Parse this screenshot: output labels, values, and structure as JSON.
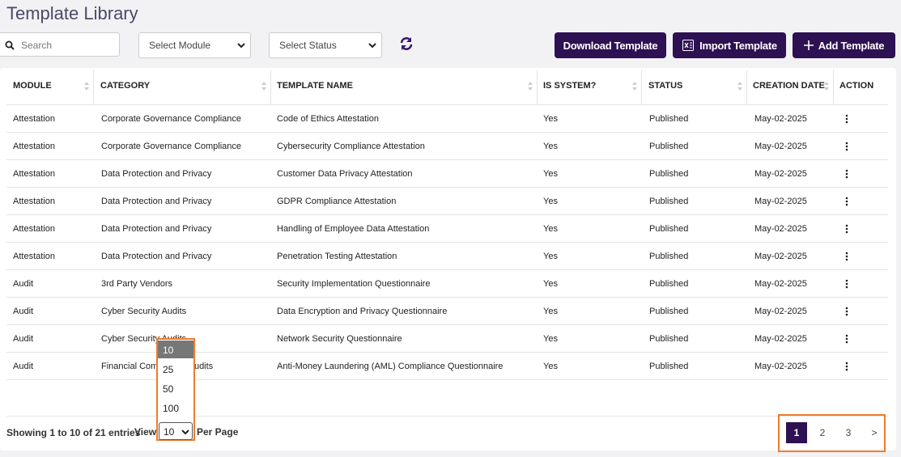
{
  "header": {
    "title": "Template Library"
  },
  "toolbar": {
    "search_placeholder": "Search",
    "module_select": "Select Module",
    "status_select": "Select Status",
    "buttons": [
      "Download Template",
      "Import Template",
      "Add Template"
    ]
  },
  "table": {
    "columns": [
      "MODULE",
      "CATEGORY",
      "TEMPLATE NAME",
      "IS SYSTEM?",
      "STATUS",
      "CREATION DATE",
      "ACTION"
    ],
    "rows": [
      [
        "Attestation",
        "Corporate Governance Compliance",
        "Code of Ethics Attestation",
        "Yes",
        "Published",
        "May-02-2025"
      ],
      [
        "Attestation",
        "Corporate Governance Compliance",
        "Cybersecurity Compliance Attestation",
        "Yes",
        "Published",
        "May-02-2025"
      ],
      [
        "Attestation",
        "Data Protection and Privacy",
        "Customer Data Privacy Attestation",
        "Yes",
        "Published",
        "May-02-2025"
      ],
      [
        "Attestation",
        "Data Protection and Privacy",
        "GDPR Compliance Attestation",
        "Yes",
        "Published",
        "May-02-2025"
      ],
      [
        "Attestation",
        "Data Protection and Privacy",
        "Handling of Employee Data Attestation",
        "Yes",
        "Published",
        "May-02-2025"
      ],
      [
        "Attestation",
        "Data Protection and Privacy",
        "Penetration Testing Attestation",
        "Yes",
        "Published",
        "May-02-2025"
      ],
      [
        "Audit",
        "3rd Party Vendors",
        "Security Implementation Questionnaire",
        "Yes",
        "Published",
        "May-02-2025"
      ],
      [
        "Audit",
        "Cyber Security Audits",
        "Data Encryption and Privacy Questionnaire",
        "Yes",
        "Published",
        "May-02-2025"
      ],
      [
        "Audit",
        "Cyber Security Audits",
        "Network Security Questionnaire",
        "Yes",
        "Published",
        "May-02-2025"
      ],
      [
        "Audit",
        "Financial Compliance Audits",
        "Anti-Money Laundering (AML) Compliance Questionnaire",
        "Yes",
        "Published",
        "May-02-2025"
      ]
    ]
  },
  "footer": {
    "summary": "Showing 1 to 10 of 21 entries",
    "view_label": "View",
    "page_size": "10",
    "per_page_label": "Per Page",
    "page_size_options": [
      "10",
      "25",
      "50",
      "100"
    ],
    "pages": [
      "1",
      "2",
      "3",
      ">"
    ]
  }
}
